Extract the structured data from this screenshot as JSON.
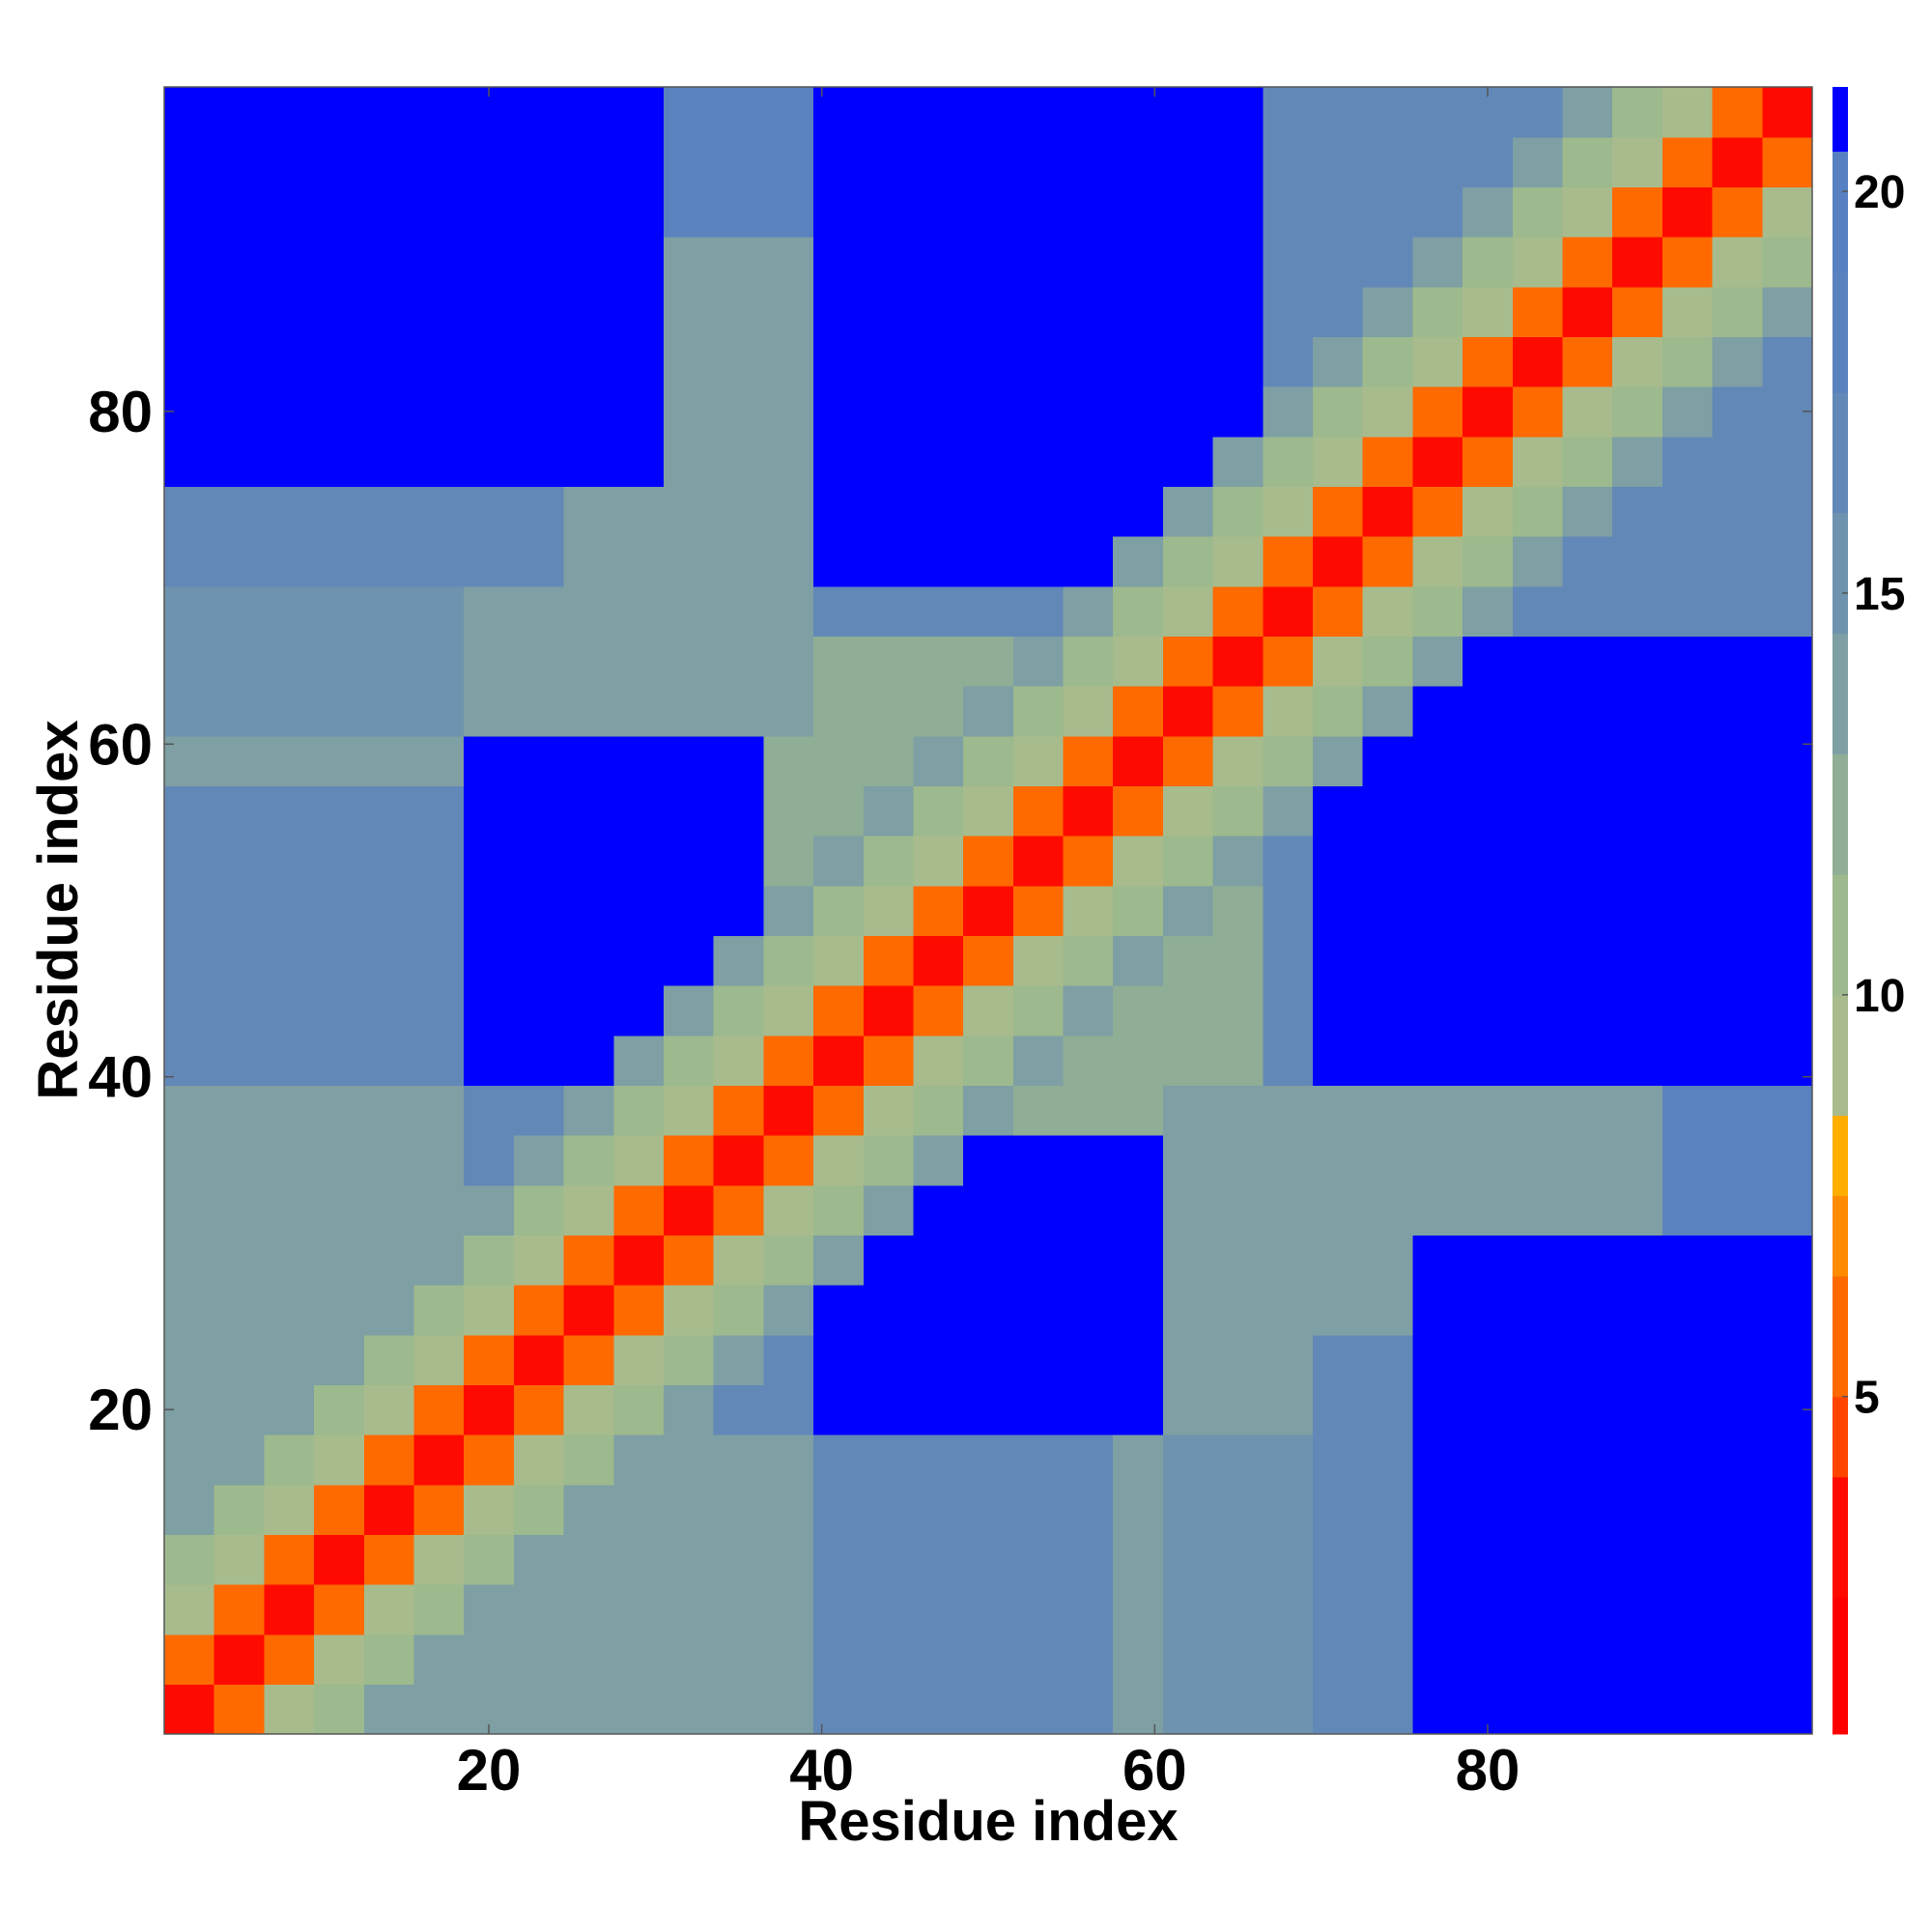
{
  "chart_data": {
    "type": "heatmap",
    "x_label": "Residue index",
    "y_label": "Residue index",
    "xlim": [
      0.5,
      99.5
    ],
    "ylim": [
      0.5,
      99.5
    ],
    "xticks": [
      20,
      40,
      60,
      80
    ],
    "yticks": [
      20,
      40,
      60,
      80
    ],
    "x": [
      2,
      5,
      8,
      11,
      14,
      17,
      20,
      23,
      26,
      29,
      32,
      35,
      38,
      41,
      44,
      47,
      50,
      53,
      56,
      59,
      62,
      65,
      68,
      71,
      74,
      77,
      80,
      83,
      86,
      89,
      92,
      95,
      98
    ],
    "y": [
      2,
      5,
      8,
      11,
      14,
      17,
      20,
      23,
      26,
      29,
      32,
      35,
      38,
      41,
      44,
      47,
      50,
      53,
      56,
      59,
      62,
      65,
      68,
      71,
      74,
      77,
      80,
      83,
      86,
      89,
      92,
      95,
      98
    ],
    "z": [
      [
        3,
        6,
        9,
        11,
        13,
        14,
        14,
        14,
        14,
        14,
        14,
        14,
        14,
        16,
        16,
        16,
        16,
        16,
        16,
        14,
        15,
        15,
        15,
        17,
        17,
        21,
        21,
        21,
        21,
        21,
        21,
        21,
        21
      ],
      [
        6,
        3,
        6,
        9,
        11,
        13,
        14,
        14,
        14,
        14,
        14,
        14,
        14,
        16,
        16,
        16,
        16,
        16,
        16,
        14,
        15,
        15,
        15,
        17,
        17,
        21,
        21,
        21,
        21,
        21,
        21,
        21,
        21
      ],
      [
        9,
        6,
        3,
        6,
        9,
        11,
        13,
        14,
        14,
        14,
        14,
        14,
        14,
        16,
        16,
        16,
        16,
        16,
        16,
        14,
        15,
        15,
        15,
        17,
        17,
        21,
        21,
        21,
        21,
        21,
        21,
        21,
        21
      ],
      [
        11,
        9,
        6,
        3,
        6,
        9,
        11,
        13,
        14,
        14,
        14,
        14,
        14,
        16,
        16,
        16,
        16,
        16,
        16,
        14,
        15,
        15,
        15,
        17,
        17,
        21,
        21,
        21,
        21,
        21,
        21,
        21,
        21
      ],
      [
        13,
        11,
        9,
        6,
        3,
        6,
        9,
        11,
        13,
        14,
        14,
        14,
        14,
        16,
        16,
        16,
        16,
        16,
        16,
        14,
        15,
        15,
        15,
        17,
        17,
        21,
        21,
        21,
        21,
        21,
        21,
        21,
        21
      ],
      [
        14,
        13,
        11,
        9,
        6,
        3,
        6,
        9,
        11,
        13,
        14,
        14,
        14,
        16,
        16,
        16,
        16,
        16,
        16,
        14,
        15,
        15,
        15,
        17,
        17,
        21,
        21,
        21,
        21,
        21,
        21,
        21,
        21
      ],
      [
        14,
        14,
        13,
        11,
        9,
        6,
        3,
        6,
        9,
        11,
        13,
        17,
        17,
        21,
        21,
        21,
        21,
        21,
        21,
        21,
        13,
        13,
        13,
        17,
        17,
        21,
        21,
        21,
        21,
        21,
        21,
        21,
        21
      ],
      [
        14,
        14,
        14,
        13,
        11,
        9,
        6,
        3,
        6,
        9,
        11,
        13,
        17,
        21,
        21,
        21,
        21,
        21,
        21,
        21,
        13,
        13,
        13,
        17,
        17,
        21,
        21,
        21,
        21,
        21,
        21,
        21,
        21
      ],
      [
        14,
        14,
        14,
        14,
        13,
        11,
        9,
        6,
        3,
        6,
        9,
        11,
        13,
        21,
        21,
        21,
        21,
        21,
        21,
        21,
        13,
        13,
        13,
        13,
        13,
        21,
        21,
        21,
        21,
        21,
        21,
        21,
        21
      ],
      [
        14,
        14,
        14,
        14,
        14,
        13,
        11,
        9,
        6,
        3,
        6,
        9,
        11,
        13,
        21,
        21,
        21,
        21,
        21,
        21,
        13,
        13,
        13,
        13,
        13,
        21,
        21,
        21,
        21,
        21,
        21,
        21,
        21
      ],
      [
        14,
        14,
        14,
        14,
        14,
        14,
        13,
        11,
        9,
        6,
        3,
        6,
        9,
        11,
        13,
        21,
        21,
        21,
        21,
        21,
        13,
        13,
        13,
        13,
        13,
        13,
        13,
        13,
        13,
        13,
        18,
        18,
        18
      ],
      [
        14,
        14,
        14,
        14,
        14,
        14,
        17,
        13,
        11,
        9,
        6,
        3,
        6,
        9,
        11,
        13,
        21,
        21,
        21,
        21,
        13,
        13,
        13,
        13,
        13,
        13,
        13,
        13,
        13,
        13,
        18,
        18,
        18
      ],
      [
        14,
        14,
        14,
        14,
        14,
        14,
        17,
        17,
        13,
        11,
        9,
        6,
        3,
        6,
        9,
        11,
        13,
        12,
        12,
        12,
        13,
        13,
        13,
        13,
        13,
        13,
        13,
        13,
        13,
        13,
        18,
        18,
        18
      ],
      [
        16,
        16,
        16,
        16,
        16,
        16,
        21,
        21,
        21,
        13,
        11,
        9,
        6,
        3,
        6,
        9,
        11,
        13,
        12,
        12,
        12,
        12,
        17,
        21,
        21,
        21,
        21,
        21,
        21,
        21,
        21,
        21,
        21
      ],
      [
        16,
        16,
        16,
        16,
        16,
        16,
        21,
        21,
        21,
        21,
        13,
        11,
        9,
        6,
        3,
        6,
        9,
        11,
        13,
        12,
        12,
        12,
        17,
        21,
        21,
        21,
        21,
        21,
        21,
        21,
        21,
        21,
        21
      ],
      [
        16,
        16,
        16,
        16,
        16,
        16,
        21,
        21,
        21,
        21,
        21,
        13,
        11,
        9,
        6,
        3,
        6,
        9,
        11,
        13,
        12,
        12,
        17,
        21,
        21,
        21,
        21,
        21,
        21,
        21,
        21,
        21,
        21
      ],
      [
        16,
        16,
        16,
        16,
        16,
        16,
        21,
        21,
        21,
        21,
        21,
        21,
        13,
        11,
        9,
        6,
        3,
        6,
        9,
        11,
        13,
        12,
        17,
        21,
        21,
        21,
        21,
        21,
        21,
        21,
        21,
        21,
        21
      ],
      [
        16,
        16,
        16,
        16,
        16,
        16,
        21,
        21,
        21,
        21,
        21,
        21,
        12,
        13,
        11,
        9,
        6,
        3,
        6,
        9,
        11,
        13,
        17,
        21,
        21,
        21,
        21,
        21,
        21,
        21,
        21,
        21,
        21
      ],
      [
        16,
        16,
        16,
        16,
        16,
        16,
        21,
        21,
        21,
        21,
        21,
        21,
        12,
        12,
        13,
        11,
        9,
        6,
        3,
        6,
        9,
        11,
        13,
        21,
        21,
        21,
        21,
        21,
        21,
        21,
        21,
        21,
        21
      ],
      [
        14,
        14,
        14,
        14,
        14,
        14,
        21,
        21,
        21,
        21,
        21,
        21,
        12,
        12,
        12,
        13,
        11,
        9,
        6,
        3,
        6,
        9,
        11,
        13,
        21,
        21,
        21,
        21,
        21,
        21,
        21,
        21,
        21
      ],
      [
        15,
        15,
        15,
        15,
        15,
        15,
        13,
        13,
        13,
        13,
        13,
        13,
        13,
        12,
        12,
        12,
        13,
        11,
        9,
        6,
        3,
        6,
        9,
        11,
        13,
        21,
        21,
        21,
        21,
        21,
        21,
        21,
        21
      ],
      [
        15,
        15,
        15,
        15,
        15,
        15,
        13,
        13,
        13,
        13,
        13,
        13,
        13,
        12,
        12,
        12,
        12,
        13,
        11,
        9,
        6,
        3,
        6,
        9,
        11,
        13,
        21,
        21,
        21,
        21,
        21,
        21,
        21
      ],
      [
        15,
        15,
        15,
        15,
        15,
        15,
        13,
        13,
        13,
        13,
        13,
        13,
        13,
        17,
        17,
        17,
        17,
        17,
        13,
        11,
        9,
        6,
        3,
        6,
        9,
        11,
        13,
        17,
        17,
        17,
        17,
        17,
        17
      ],
      [
        17,
        17,
        17,
        17,
        17,
        17,
        17,
        17,
        13,
        13,
        13,
        13,
        13,
        21,
        21,
        21,
        21,
        21,
        21,
        13,
        11,
        9,
        6,
        3,
        6,
        9,
        11,
        13,
        17,
        17,
        17,
        17,
        17
      ],
      [
        17,
        17,
        17,
        17,
        17,
        17,
        17,
        17,
        13,
        13,
        13,
        13,
        13,
        21,
        21,
        21,
        21,
        21,
        21,
        21,
        13,
        11,
        9,
        6,
        3,
        6,
        9,
        11,
        13,
        17,
        17,
        17,
        17
      ],
      [
        21,
        21,
        21,
        21,
        21,
        21,
        21,
        21,
        21,
        21,
        13,
        13,
        13,
        21,
        21,
        21,
        21,
        21,
        21,
        21,
        21,
        13,
        11,
        9,
        6,
        3,
        6,
        9,
        11,
        13,
        17,
        17,
        17
      ],
      [
        21,
        21,
        21,
        21,
        21,
        21,
        21,
        21,
        21,
        21,
        13,
        13,
        13,
        21,
        21,
        21,
        21,
        21,
        21,
        21,
        21,
        21,
        13,
        11,
        9,
        6,
        3,
        6,
        9,
        11,
        13,
        17,
        17
      ],
      [
        21,
        21,
        21,
        21,
        21,
        21,
        21,
        21,
        21,
        21,
        13,
        13,
        13,
        21,
        21,
        21,
        21,
        21,
        21,
        21,
        21,
        21,
        17,
        13,
        11,
        9,
        6,
        3,
        6,
        9,
        11,
        13,
        17
      ],
      [
        21,
        21,
        21,
        21,
        21,
        21,
        21,
        21,
        21,
        21,
        13,
        13,
        13,
        21,
        21,
        21,
        21,
        21,
        21,
        21,
        21,
        21,
        17,
        17,
        13,
        11,
        9,
        6,
        3,
        6,
        9,
        11,
        13
      ],
      [
        21,
        21,
        21,
        21,
        21,
        21,
        21,
        21,
        21,
        21,
        13,
        13,
        13,
        21,
        21,
        21,
        21,
        21,
        21,
        21,
        21,
        21,
        17,
        17,
        17,
        13,
        11,
        9,
        6,
        3,
        6,
        9,
        11
      ],
      [
        21,
        21,
        21,
        21,
        21,
        21,
        21,
        21,
        21,
        21,
        18,
        18,
        18,
        21,
        21,
        21,
        21,
        21,
        21,
        21,
        21,
        21,
        17,
        17,
        17,
        17,
        13,
        11,
        9,
        6,
        3,
        6,
        9
      ],
      [
        21,
        21,
        21,
        21,
        21,
        21,
        21,
        21,
        21,
        21,
        18,
        18,
        18,
        21,
        21,
        21,
        21,
        21,
        21,
        21,
        21,
        21,
        17,
        17,
        17,
        17,
        17,
        13,
        11,
        9,
        6,
        3,
        6
      ],
      [
        21,
        21,
        21,
        21,
        21,
        21,
        21,
        21,
        21,
        21,
        18,
        18,
        18,
        21,
        21,
        21,
        21,
        21,
        21,
        21,
        21,
        21,
        17,
        17,
        17,
        17,
        17,
        17,
        13,
        11,
        9,
        6,
        3
      ]
    ],
    "colorbar": {
      "lim": [
        0.8,
        21.3
      ],
      "ticks": [
        5,
        10,
        15,
        20
      ],
      "bounds": [
        0.8,
        2.5,
        4.0,
        5.0,
        6.5,
        7.5,
        8.5,
        10.0,
        11.5,
        13.0,
        14.5,
        16.0,
        17.5,
        19.0,
        20.5,
        21.3
      ],
      "colors": [
        "#ff0000",
        "#ff0a00",
        "#ff4500",
        "#ff6a00",
        "#ff8c00",
        "#ffae00",
        "#a7bb8c",
        "#9db98e",
        "#8fae95",
        "#7e9fa3",
        "#6f93ae",
        "#6288b8",
        "#5a82bf",
        "#5780c2",
        "#0000ff"
      ]
    }
  }
}
